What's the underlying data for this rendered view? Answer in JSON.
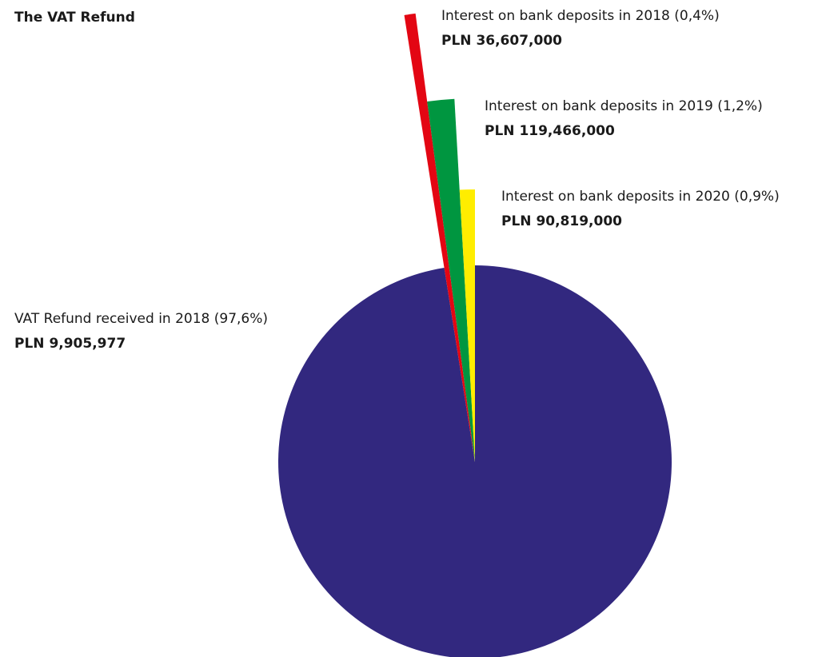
{
  "chart_data": {
    "type": "pie",
    "title": "The VAT Refund",
    "categories": [
      "VAT Refund received in 2018",
      "Interest on bank deposits in 2018",
      "Interest on bank deposits in 2019",
      "Interest on bank deposits in 2020"
    ],
    "values": [
      97.6,
      0.4,
      1.2,
      0.9
    ],
    "value_labels": [
      "(97,6%)",
      "(0,4%)",
      "(1,2%)",
      "(0,9%)"
    ],
    "amount_labels": [
      "PLN 9,905,977",
      "PLN 36,607,000",
      "PLN 119,466,000",
      "PLN 90,819,000"
    ],
    "colors": [
      "#32287f",
      "#e30613",
      "#009640",
      "#ffed00"
    ]
  }
}
